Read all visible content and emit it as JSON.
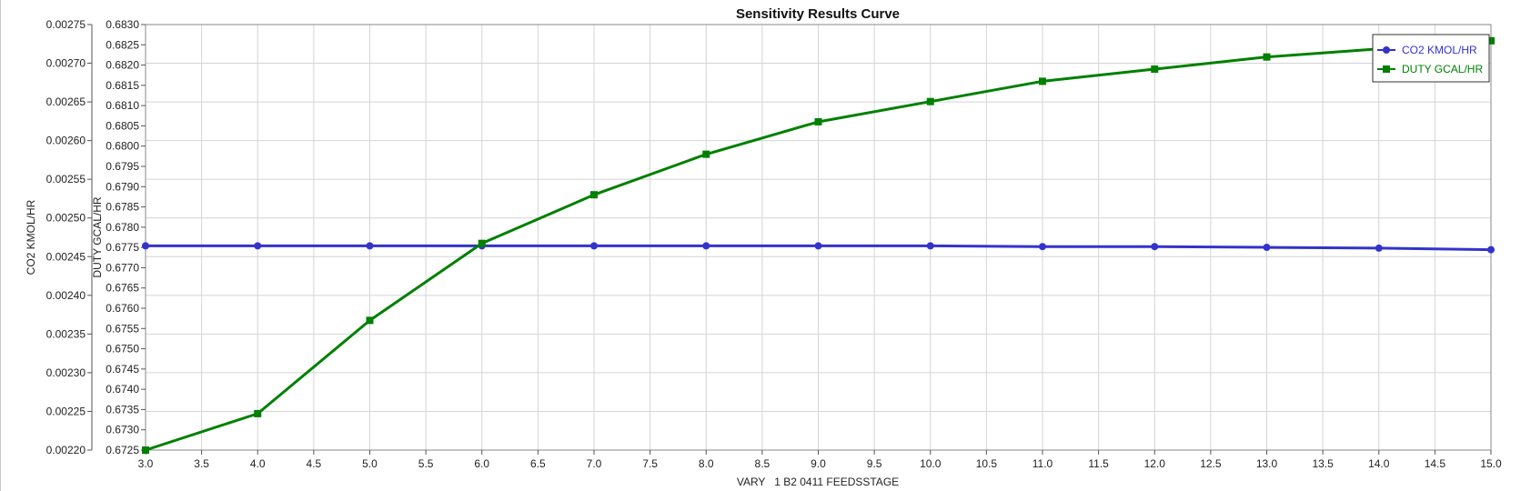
{
  "chart_data": {
    "type": "line",
    "title": "Sensitivity Results Curve",
    "xlabel": "VARY   1 B2 0411 FEEDSSTAGE",
    "xlim": [
      3.0,
      15.0
    ],
    "x_ticks": [
      "3.0",
      "3.5",
      "4.0",
      "4.5",
      "5.0",
      "5.5",
      "6.0",
      "6.5",
      "7.0",
      "7.5",
      "8.0",
      "8.5",
      "9.0",
      "9.5",
      "10.0",
      "10.5",
      "11.0",
      "11.5",
      "12.0",
      "12.5",
      "13.0",
      "13.5",
      "14.0",
      "14.5",
      "15.0"
    ],
    "x": [
      3,
      4,
      5,
      6,
      7,
      8,
      9,
      10,
      11,
      12,
      13,
      14,
      15
    ],
    "y_axes": [
      {
        "label": "CO2 KMOL/HR",
        "ylim": [
          0.0022,
          0.00275
        ],
        "ticks": [
          "0.00275",
          "0.00270",
          "0.00265",
          "0.00260",
          "0.00255",
          "0.00250",
          "0.00245",
          "0.00240",
          "0.00235",
          "0.00230",
          "0.00225",
          "0.00220"
        ]
      },
      {
        "label": "DUTY GCAL/HR",
        "ylim": [
          0.6725,
          0.683
        ],
        "ticks": [
          "0.6830",
          "0.6825",
          "0.6820",
          "0.6815",
          "0.6810",
          "0.6805",
          "0.6800",
          "0.6795",
          "0.6790",
          "0.6785",
          "0.6780",
          "0.6775",
          "0.6770",
          "0.6765",
          "0.6760",
          "0.6755",
          "0.6750",
          "0.6745",
          "0.6740",
          "0.6735",
          "0.6730",
          "0.6725"
        ]
      }
    ],
    "series": [
      {
        "name": "CO2 KMOL/HR",
        "axis": 0,
        "color": "#3333cc",
        "marker": "circle",
        "values": [
          0.002464,
          0.002464,
          0.002464,
          0.002464,
          0.002464,
          0.002464,
          0.002464,
          0.002464,
          0.002463,
          0.002463,
          0.002462,
          0.002461,
          0.002459
        ]
      },
      {
        "name": "DUTY GCAL/HR",
        "axis": 1,
        "color": "#008000",
        "marker": "square",
        "values": [
          0.6725,
          0.6734,
          0.6757,
          0.6776,
          0.6788,
          0.6798,
          0.6806,
          0.6811,
          0.6816,
          0.6819,
          0.6822,
          0.6824,
          0.6826
        ]
      }
    ],
    "grid": true,
    "legend_position": "top-right"
  }
}
